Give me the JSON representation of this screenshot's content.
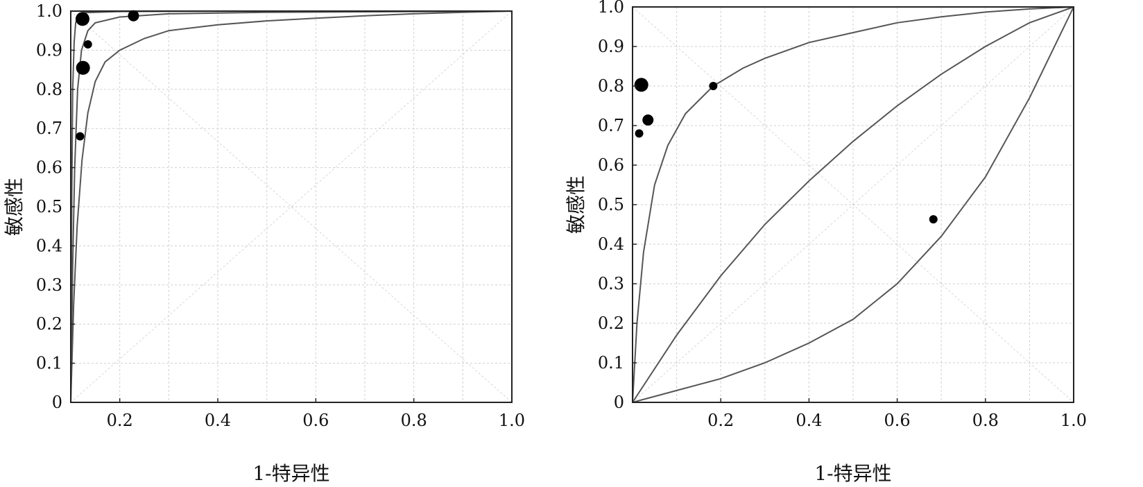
{
  "chart_data": [
    {
      "type": "scatter",
      "title": "",
      "xlabel": "1-特异性",
      "ylabel": "敏感性",
      "xlim": [
        0.1,
        1.0
      ],
      "ylim": [
        0,
        1.0
      ],
      "x_ticks": [
        "0.2",
        "0.4",
        "0.6",
        "0.8",
        "1.0"
      ],
      "x_tick_values": [
        0.2,
        0.4,
        0.6,
        0.8,
        1.0
      ],
      "y_ticks": [
        "0",
        "0.1",
        "0.2",
        "0.3",
        "0.4",
        "0.5",
        "0.6",
        "0.7",
        "0.8",
        "0.9",
        "1.0"
      ],
      "y_tick_values": [
        0,
        0.1,
        0.2,
        0.3,
        0.4,
        0.5,
        0.6,
        0.7,
        0.8,
        0.9,
        1.0
      ],
      "grid": true,
      "diagonals": true,
      "points": [
        {
          "x": 0.124,
          "y": 0.98,
          "size": "large"
        },
        {
          "x": 0.228,
          "y": 0.988,
          "size": "medium"
        },
        {
          "x": 0.135,
          "y": 0.915,
          "size": "small"
        },
        {
          "x": 0.125,
          "y": 0.855,
          "size": "large"
        },
        {
          "x": 0.119,
          "y": 0.68,
          "size": "small"
        }
      ],
      "curves": [
        [
          [
            0.1,
            0
          ],
          [
            0.102,
            0.5
          ],
          [
            0.104,
            0.8
          ],
          [
            0.107,
            0.92
          ],
          [
            0.11,
            0.97
          ],
          [
            0.115,
            0.99
          ],
          [
            0.125,
            0.996
          ],
          [
            0.2,
            0.999
          ],
          [
            0.5,
            1.0
          ],
          [
            1.0,
            1.0
          ]
        ],
        [
          [
            0.1,
            0
          ],
          [
            0.104,
            0.35
          ],
          [
            0.108,
            0.6
          ],
          [
            0.114,
            0.8
          ],
          [
            0.122,
            0.9
          ],
          [
            0.135,
            0.95
          ],
          [
            0.15,
            0.97
          ],
          [
            0.2,
            0.985
          ],
          [
            0.3,
            0.993
          ],
          [
            0.5,
            0.997
          ],
          [
            1.0,
            1.0
          ]
        ],
        [
          [
            0.1,
            0
          ],
          [
            0.106,
            0.25
          ],
          [
            0.113,
            0.45
          ],
          [
            0.123,
            0.62
          ],
          [
            0.135,
            0.74
          ],
          [
            0.15,
            0.82
          ],
          [
            0.17,
            0.87
          ],
          [
            0.2,
            0.9
          ],
          [
            0.25,
            0.93
          ],
          [
            0.3,
            0.95
          ],
          [
            0.4,
            0.965
          ],
          [
            0.5,
            0.975
          ],
          [
            0.6,
            0.982
          ],
          [
            0.7,
            0.988
          ],
          [
            0.8,
            0.993
          ],
          [
            0.9,
            0.997
          ],
          [
            1.0,
            1.0
          ]
        ]
      ]
    },
    {
      "type": "scatter",
      "title": "",
      "xlabel": "1-特异性",
      "ylabel": "敏感性",
      "xlim": [
        0,
        1.0
      ],
      "ylim": [
        0,
        1.0
      ],
      "x_ticks": [
        "0.2",
        "0.4",
        "0.6",
        "0.8",
        "1.0"
      ],
      "x_tick_values": [
        0.2,
        0.4,
        0.6,
        0.8,
        1.0
      ],
      "y_ticks": [
        "0",
        "0.1",
        "0.2",
        "0.3",
        "0.4",
        "0.5",
        "0.6",
        "0.7",
        "0.8",
        "0.9",
        "1.0"
      ],
      "y_tick_values": [
        0,
        0.1,
        0.2,
        0.3,
        0.4,
        0.5,
        0.6,
        0.7,
        0.8,
        0.9,
        1.0
      ],
      "grid": true,
      "diagonals": true,
      "points": [
        {
          "x": 0.02,
          "y": 0.803,
          "size": "large"
        },
        {
          "x": 0.183,
          "y": 0.8,
          "size": "small"
        },
        {
          "x": 0.035,
          "y": 0.714,
          "size": "medium"
        },
        {
          "x": 0.015,
          "y": 0.68,
          "size": "small"
        },
        {
          "x": 0.682,
          "y": 0.463,
          "size": "small"
        }
      ],
      "curves": [
        [
          [
            0,
            0
          ],
          [
            0.01,
            0.2
          ],
          [
            0.025,
            0.38
          ],
          [
            0.05,
            0.55
          ],
          [
            0.08,
            0.65
          ],
          [
            0.12,
            0.73
          ],
          [
            0.183,
            0.8
          ],
          [
            0.25,
            0.845
          ],
          [
            0.3,
            0.87
          ],
          [
            0.4,
            0.91
          ],
          [
            0.5,
            0.935
          ],
          [
            0.6,
            0.96
          ],
          [
            0.7,
            0.975
          ],
          [
            0.8,
            0.987
          ],
          [
            0.9,
            0.995
          ],
          [
            1.0,
            1.0
          ]
        ],
        [
          [
            0,
            0
          ],
          [
            0.1,
            0.17
          ],
          [
            0.2,
            0.32
          ],
          [
            0.3,
            0.45
          ],
          [
            0.4,
            0.56
          ],
          [
            0.5,
            0.66
          ],
          [
            0.6,
            0.75
          ],
          [
            0.7,
            0.83
          ],
          [
            0.8,
            0.9
          ],
          [
            0.9,
            0.96
          ],
          [
            1.0,
            1.0
          ]
        ],
        [
          [
            0,
            0
          ],
          [
            0.1,
            0.03
          ],
          [
            0.2,
            0.06
          ],
          [
            0.3,
            0.1
          ],
          [
            0.4,
            0.15
          ],
          [
            0.5,
            0.21
          ],
          [
            0.6,
            0.3
          ],
          [
            0.7,
            0.42
          ],
          [
            0.8,
            0.57
          ],
          [
            0.9,
            0.77
          ],
          [
            1.0,
            1.0
          ]
        ]
      ]
    }
  ]
}
